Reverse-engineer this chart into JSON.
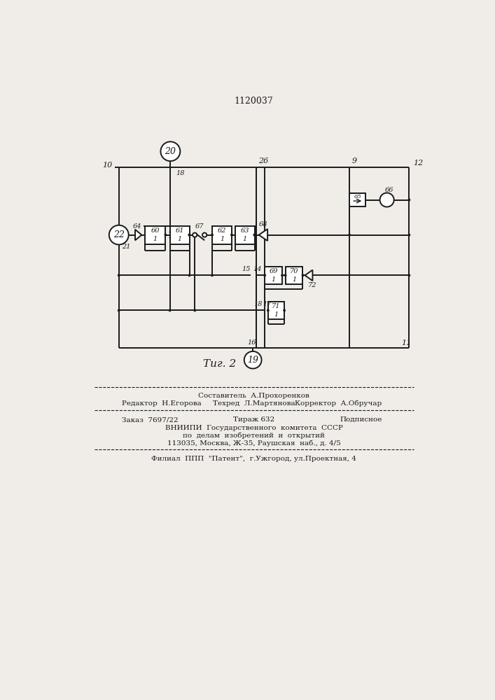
{
  "title": "1120037",
  "fig_label": "Τиг. 2",
  "bg_color": "#f0ede8",
  "line_color": "#1a1a1a",
  "text_color": "#1a1a1a",
  "footer": {
    "line1_left": "Редактор  Н.Егорова",
    "line1_center": "Техред  Л.Мартянова",
    "line1_right": "Корректор  А.Обручар",
    "line0_center": "Составитель  А.Прохоренков",
    "line2_left": "Заказ  7697/22",
    "line2_center": "Тираж 632",
    "line2_right": "Подписное",
    "line3": "ВНИИПИ  Государственного  комитета  СССР",
    "line4": "по  делам  изобретений  и  открытий",
    "line5": "113035, Москва, Ж-35, Раушская  наб., д. 4/5",
    "line6": "Филиал  ППП  \"Патент\",  г.Ужгород, ул.Проектная, 4"
  }
}
